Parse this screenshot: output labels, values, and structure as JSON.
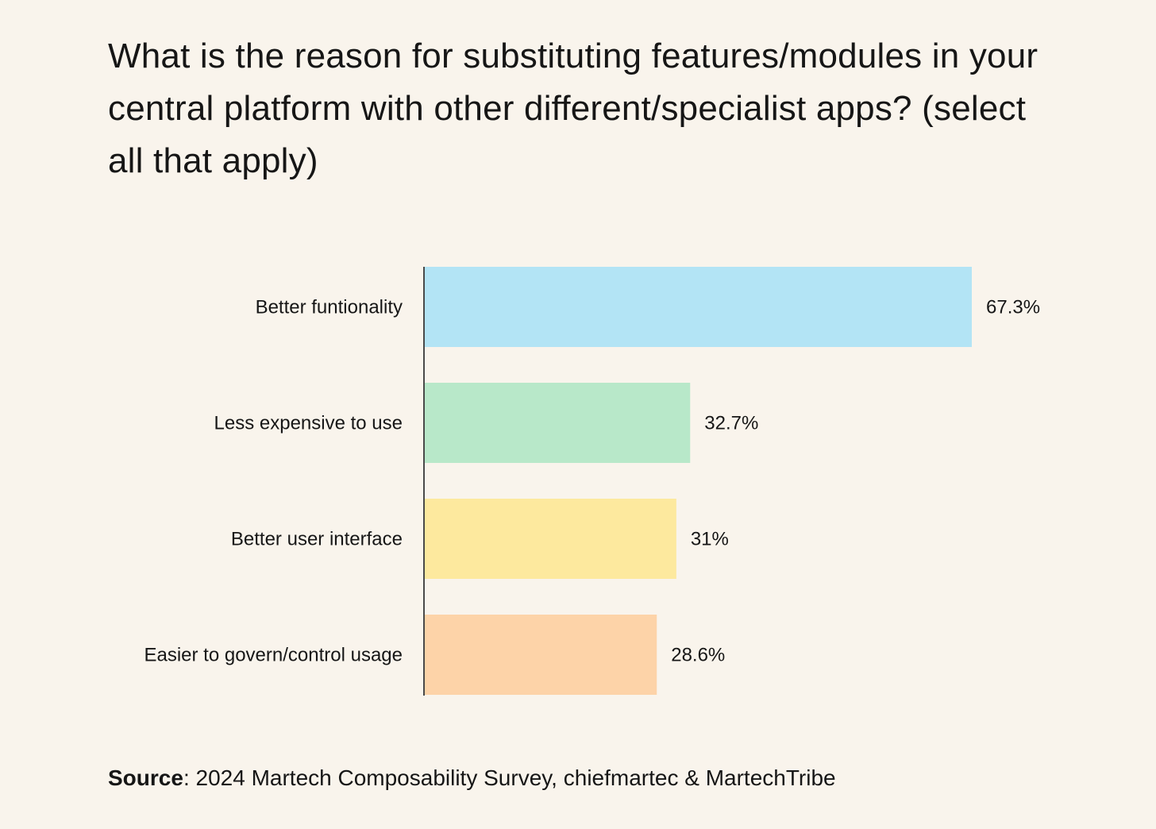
{
  "chart_data": {
    "type": "bar",
    "orientation": "horizontal",
    "title": "What is the reason for substituting features/modules in your central platform with other different/specialist apps? (select all that apply)",
    "categories": [
      "Better funtionality",
      "Less expensive to use",
      "Better user interface",
      "Easier to govern/control usage"
    ],
    "values": [
      67.3,
      32.7,
      31,
      28.6
    ],
    "data_labels": [
      "67.3%",
      "32.7%",
      "31%",
      "28.6%"
    ],
    "colors": [
      "#b3e4f5",
      "#b8e8c9",
      "#fde99e",
      "#fdd3a8"
    ],
    "xlabel": "",
    "ylabel": "",
    "xlim": [
      0,
      70
    ],
    "grid": false,
    "legend": "none"
  },
  "source": {
    "label": "Source",
    "text": ": 2024 Martech Composability Survey, chiefmartec & MartechTribe"
  }
}
